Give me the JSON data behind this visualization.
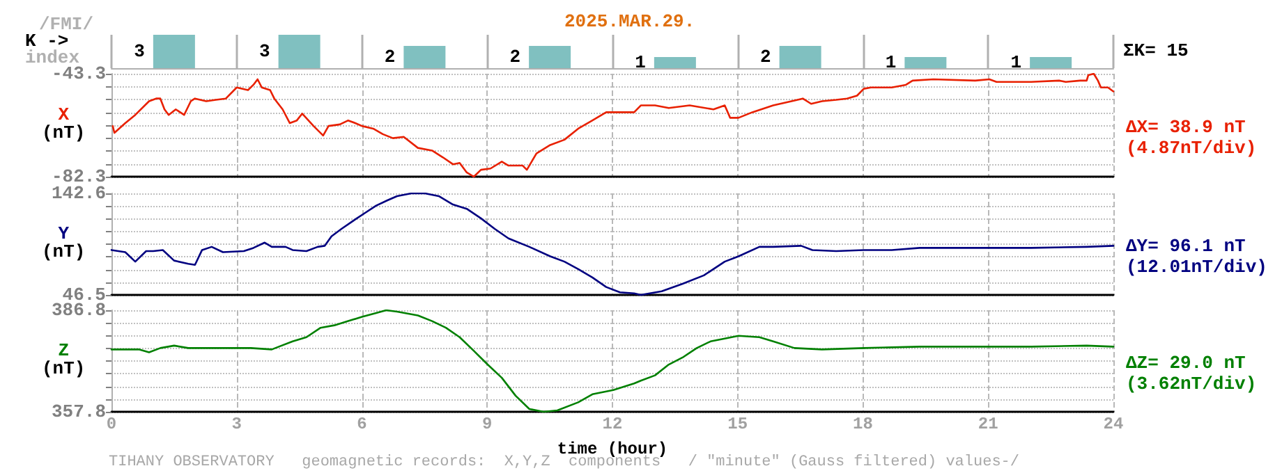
{
  "chart_data": [
    {
      "type": "bar",
      "title": "2025.MAR.29.",
      "ylabel": "K ->",
      "annotations": [
        "/FMI/",
        "index",
        "ΣK= 15"
      ],
      "categories": [
        null,
        null,
        null,
        null,
        null,
        null,
        null,
        null
      ],
      "values": [
        3,
        3,
        2,
        2,
        1,
        2,
        1,
        1
      ],
      "color": "#80c0c0",
      "data_labels": true,
      "grid": "x",
      "tick_labels": false
    },
    {
      "type": "line",
      "ylabel": "X (nT)",
      "annotations": [
        "ΔX= 38.9 nT",
        "(4.87nT/div)"
      ],
      "color": "#e82000",
      "marker": "none",
      "line_style": "solid",
      "grid": true,
      "tick_labels": "y",
      "xlim": [
        0,
        24
      ],
      "xticks": [
        0,
        3,
        6,
        9,
        12,
        15,
        18,
        21,
        24
      ],
      "ylim": [
        -82.3,
        -43.3
      ],
      "yticks": [
        -82.3,
        {
          "value": -77.425,
          "label": null
        },
        {
          "value": -72.55,
          "label": null
        },
        {
          "value": -67.675,
          "label": null
        },
        {
          "value": -62.8,
          "label": null
        },
        {
          "value": -57.925,
          "label": null
        },
        {
          "value": -53.05,
          "label": null
        },
        {
          "value": -48.175,
          "label": null
        },
        -43.3
      ],
      "x": [
        0.03,
        0.07,
        0.33,
        0.57,
        0.9,
        1.07,
        1.17,
        1.27,
        1.37,
        1.54,
        1.74,
        1.9,
        2.0,
        2.27,
        2.5,
        2.74,
        3.0,
        3.27,
        3.4,
        3.5,
        3.6,
        3.8,
        3.9,
        4.1,
        4.27,
        4.44,
        4.57,
        4.84,
        5.07,
        5.2,
        5.47,
        5.67,
        5.84,
        6.0,
        6.27,
        6.5,
        6.74,
        7.0,
        7.34,
        7.68,
        7.94,
        8.18,
        8.34,
        8.51,
        8.68,
        8.85,
        9.08,
        9.35,
        9.51,
        9.85,
        9.95,
        10.18,
        10.51,
        10.85,
        11.18,
        11.52,
        11.85,
        12.18,
        12.52,
        12.68,
        13.02,
        13.35,
        13.85,
        14.42,
        14.69,
        14.82,
        15.02,
        15.35,
        15.85,
        16.29,
        16.56,
        16.76,
        17.02,
        17.36,
        17.62,
        17.86,
        18.02,
        18.19,
        18.69,
        19.03,
        19.19,
        19.69,
        20.69,
        21.03,
        21.2,
        22.03,
        22.7,
        22.86,
        23.2,
        23.36,
        23.4,
        23.53,
        23.63,
        23.7,
        23.87,
        24.0
      ],
      "values": [
        -63.1,
        -65.7,
        -62.0,
        -58.9,
        -53.7,
        -52.7,
        -52.7,
        -56.8,
        -58.9,
        -56.8,
        -58.9,
        -53.7,
        -52.7,
        -53.7,
        -53.2,
        -52.7,
        -48.5,
        -49.5,
        -47.5,
        -45.4,
        -48.5,
        -49.5,
        -52.7,
        -56.8,
        -62.0,
        -61.0,
        -58.4,
        -63.1,
        -66.7,
        -63.1,
        -62.5,
        -61.0,
        -62.0,
        -63.1,
        -64.1,
        -66.2,
        -67.7,
        -67.2,
        -71.4,
        -72.4,
        -75.0,
        -77.6,
        -77.1,
        -80.7,
        -82.3,
        -79.7,
        -79.2,
        -76.6,
        -78.1,
        -78.1,
        -79.7,
        -73.5,
        -70.3,
        -68.3,
        -64.1,
        -61.0,
        -57.9,
        -57.9,
        -57.9,
        -55.3,
        -55.3,
        -56.3,
        -55.3,
        -56.8,
        -55.3,
        -60.0,
        -60.0,
        -57.9,
        -55.3,
        -53.7,
        -52.7,
        -54.7,
        -53.7,
        -53.2,
        -52.7,
        -51.6,
        -49.0,
        -48.5,
        -48.5,
        -47.5,
        -45.9,
        -45.4,
        -45.9,
        -45.4,
        -46.4,
        -46.4,
        -45.9,
        -46.4,
        -45.9,
        -45.9,
        -43.8,
        -43.3,
        -45.9,
        -48.5,
        -48.5,
        -50.0
      ]
    },
    {
      "type": "line",
      "ylabel": "Y (nT)",
      "annotations": [
        "ΔY= 96.1 nT",
        "(12.01nT/div)"
      ],
      "color": "#000080",
      "marker": "none",
      "line_style": "solid",
      "grid": true,
      "tick_labels": "y",
      "xlim": [
        0,
        24
      ],
      "xticks": [
        0,
        3,
        6,
        9,
        12,
        15,
        18,
        21,
        24
      ],
      "ylim": [
        46.5,
        142.6
      ],
      "yticks": [
        46.5,
        {
          "value": 58.5125,
          "label": null
        },
        {
          "value": 70.525,
          "label": null
        },
        {
          "value": 82.5375,
          "label": null
        },
        {
          "value": 94.55,
          "label": null
        },
        {
          "value": 106.5625,
          "label": null
        },
        {
          "value": 118.575,
          "label": null
        },
        {
          "value": 130.5875,
          "label": null
        },
        142.6
      ],
      "x": [
        0,
        0.33,
        0.57,
        0.83,
        1.0,
        1.23,
        1.5,
        1.84,
        2.0,
        2.17,
        2.4,
        2.67,
        3.17,
        3.4,
        3.67,
        3.84,
        4.17,
        4.34,
        4.67,
        4.94,
        5.11,
        5.27,
        5.51,
        5.84,
        6.07,
        6.34,
        6.61,
        6.84,
        7.18,
        7.51,
        7.84,
        8.18,
        8.51,
        8.85,
        9.18,
        9.51,
        10.01,
        10.51,
        10.85,
        11.18,
        11.52,
        11.85,
        12.18,
        12.52,
        12.68,
        13.18,
        13.68,
        14.19,
        14.69,
        15.02,
        15.52,
        15.85,
        16.52,
        16.79,
        17.36,
        18.02,
        18.69,
        19.36,
        20.69,
        22.03,
        23.36,
        24.0
      ],
      "values": [
        89,
        87,
        78,
        88,
        88,
        89,
        79,
        76,
        75,
        89,
        92,
        87,
        88,
        91,
        96,
        92,
        92,
        89,
        88,
        92,
        93,
        102,
        109,
        118,
        124,
        131,
        136,
        140,
        142.6,
        142.6,
        140,
        132,
        128,
        119,
        109,
        100,
        92,
        83,
        78,
        71,
        63,
        54,
        49,
        48,
        46.5,
        50,
        57,
        65,
        78,
        83,
        92,
        92,
        93,
        89,
        88,
        89,
        89,
        91,
        91,
        91,
        92,
        93
      ]
    },
    {
      "type": "line",
      "ylabel": "Z (nT)",
      "xlabel": "time (hour)",
      "annotations": [
        "ΔZ= 29.0 nT",
        "(3.62nT/div)",
        "TIHANY OBSERVATORY   geomagnetic records:  X,Y,Z  components   / \"minute\" (Gauss filtered) values-/"
      ],
      "color": "#008000",
      "marker": "none",
      "line_style": "solid",
      "grid": true,
      "xlim": [
        0,
        24
      ],
      "xticks": [
        0,
        3,
        6,
        9,
        12,
        15,
        18,
        21,
        24
      ],
      "ylim": [
        357.8,
        386.8
      ],
      "yticks": [
        357.8,
        {
          "value": 361.425,
          "label": null
        },
        {
          "value": 365.05,
          "label": null
        },
        {
          "value": 368.675,
          "label": null
        },
        {
          "value": 372.3,
          "label": null
        },
        {
          "value": 375.925,
          "label": null
        },
        {
          "value": 379.55,
          "label": null
        },
        {
          "value": 383.175,
          "label": null
        },
        386.8
      ],
      "x": [
        0,
        0.33,
        0.67,
        0.9,
        1.17,
        1.5,
        1.84,
        2.34,
        2.84,
        3.34,
        3.84,
        4.01,
        4.34,
        4.67,
        5.01,
        5.34,
        5.67,
        6.0,
        6.34,
        6.58,
        6.84,
        7.34,
        7.68,
        8.01,
        8.34,
        8.68,
        9.01,
        9.35,
        9.68,
        10.01,
        10.35,
        10.68,
        11.18,
        11.52,
        12.02,
        12.52,
        12.68,
        13.02,
        13.35,
        13.68,
        14.02,
        14.35,
        14.69,
        15.02,
        15.52,
        15.85,
        16.36,
        17.02,
        18.02,
        19.36,
        20.69,
        22.03,
        23.36,
        24.0
      ],
      "values": [
        375.6,
        375.6,
        375.6,
        374.8,
        376.0,
        376.7,
        376.0,
        376.0,
        376.0,
        376.0,
        375.6,
        376.4,
        377.9,
        379.1,
        381.8,
        382.5,
        383.7,
        384.9,
        386.0,
        386.8,
        386.4,
        385.3,
        383.7,
        381.8,
        379.1,
        375.2,
        371.3,
        367.5,
        362.4,
        358.6,
        357.8,
        358.2,
        360.5,
        362.8,
        364.0,
        365.9,
        366.7,
        368.2,
        371.3,
        373.3,
        376.0,
        377.9,
        378.7,
        379.5,
        379.1,
        377.9,
        376.0,
        375.6,
        376.0,
        376.4,
        376.4,
        376.4,
        376.7,
        376.4
      ]
    }
  ]
}
